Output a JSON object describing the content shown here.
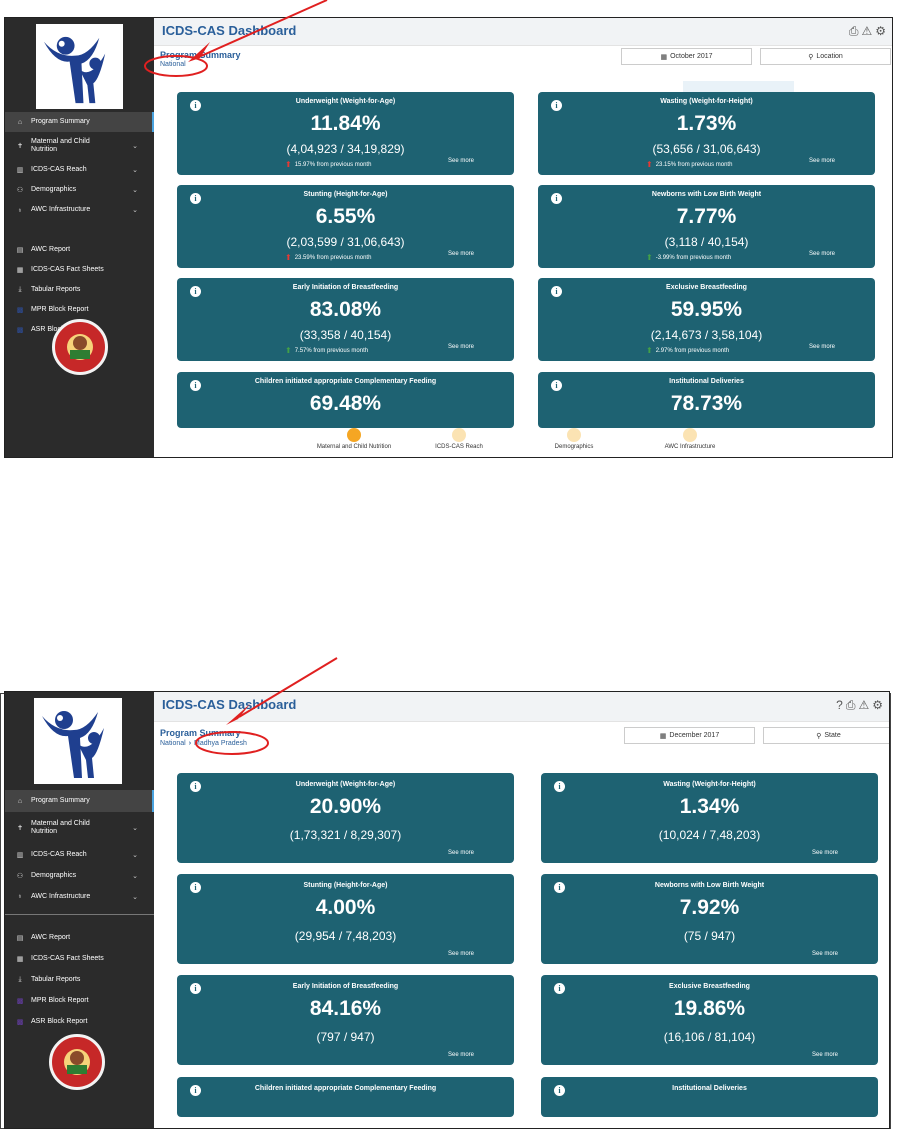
{
  "colors": {
    "card": "#1e6272",
    "sidebar": "#2b2b2b",
    "title": "#2a5f9a",
    "annotation": "#e02020",
    "trend_up": "#e53935",
    "trend_down": "#43a047",
    "step_active": "#f5a623",
    "step_inactive": "#fbe3b3"
  },
  "top": {
    "app_title": "ICDS-CAS Dashboard",
    "program_summary": "Program Summary",
    "breadcrumb": [
      "National"
    ],
    "date_button": "October 2017",
    "location_button": "Location",
    "sidebar": [
      {
        "label": "Program Summary",
        "icon": "home-icon",
        "chevron": false
      },
      {
        "label": "Maternal and Child Nutrition",
        "icon": "child-icon",
        "chevron": true
      },
      {
        "label": "ICDS-CAS Reach",
        "icon": "bar-chart-icon",
        "chevron": true
      },
      {
        "label": "Demographics",
        "icon": "users-icon",
        "chevron": true
      },
      {
        "label": "AWC Infrastructure",
        "icon": "bulb-icon",
        "chevron": true
      },
      {
        "label": "AWC Report",
        "icon": "report-icon",
        "chevron": false
      },
      {
        "label": "ICDS-CAS Fact Sheets",
        "icon": "document-icon",
        "chevron": false
      },
      {
        "label": "Tabular Reports",
        "icon": "download-icon",
        "chevron": false
      },
      {
        "label": "MPR Block Report",
        "icon": "grid-icon",
        "chevron": false
      },
      {
        "label": "ASR Block Report",
        "icon": "grid-icon",
        "chevron": false
      }
    ],
    "cards": [
      {
        "title": "Underweight (Weight-for-Age)",
        "value": "11.84%",
        "fraction": "(4,04,923 / 34,19,829)",
        "trend": "15.97% from previous month",
        "trend_dir": "up",
        "see_more": "See more"
      },
      {
        "title": "Wasting (Weight-for-Height)",
        "value": "1.73%",
        "fraction": "(53,656 / 31,06,643)",
        "trend": "23.15% from previous month",
        "trend_dir": "up",
        "see_more": "See more"
      },
      {
        "title": "Stunting (Height-for-Age)",
        "value": "6.55%",
        "fraction": "(2,03,599 / 31,06,643)",
        "trend": "23.59% from previous month",
        "trend_dir": "up",
        "see_more": "See more"
      },
      {
        "title": "Newborns with Low Birth Weight",
        "value": "7.77%",
        "fraction": "(3,118 / 40,154)",
        "trend": "-3.99% from previous month",
        "trend_dir": "down",
        "see_more": "See more"
      },
      {
        "title": "Early Initiation of Breastfeeding",
        "value": "83.08%",
        "fraction": "(33,358 / 40,154)",
        "trend": "7.57% from previous month",
        "trend_dir": "down",
        "see_more": "See more"
      },
      {
        "title": "Exclusive Breastfeeding",
        "value": "59.95%",
        "fraction": "(2,14,673 / 3,58,104)",
        "trend": "2.97% from previous month",
        "trend_dir": "down",
        "see_more": "See more"
      },
      {
        "title": "Children initiated appropriate Complementary Feeding",
        "value": "69.48%",
        "fraction": "",
        "trend": "",
        "trend_dir": "",
        "see_more": ""
      },
      {
        "title": "Institutional Deliveries",
        "value": "78.73%",
        "fraction": "",
        "trend": "",
        "trend_dir": "",
        "see_more": ""
      }
    ],
    "steps": [
      {
        "label": "Maternal and Child Nutrition",
        "active": true
      },
      {
        "label": "ICDS-CAS Reach",
        "active": false
      },
      {
        "label": "Demographics",
        "active": false
      },
      {
        "label": "AWC Infrastructure",
        "active": false
      }
    ]
  },
  "bottom": {
    "app_title": "ICDS-CAS Dashboard",
    "program_summary": "Program Summary",
    "breadcrumb": [
      "National",
      "Madhya Pradesh"
    ],
    "date_button": "December 2017",
    "location_button": "State",
    "sidebar": [
      {
        "label": "Program Summary",
        "icon": "home-icon",
        "chevron": false
      },
      {
        "label": "Maternal and Child Nutrition",
        "icon": "child-icon",
        "chevron": true
      },
      {
        "label": "ICDS-CAS Reach",
        "icon": "bar-chart-icon",
        "chevron": true
      },
      {
        "label": "Demographics",
        "icon": "users-icon",
        "chevron": true
      },
      {
        "label": "AWC Infrastructure",
        "icon": "bulb-icon",
        "chevron": true
      },
      {
        "label": "AWC Report",
        "icon": "report-icon",
        "chevron": false
      },
      {
        "label": "ICDS-CAS Fact Sheets",
        "icon": "document-icon",
        "chevron": false
      },
      {
        "label": "Tabular Reports",
        "icon": "download-icon",
        "chevron": false
      },
      {
        "label": "MPR Block Report",
        "icon": "grid-icon",
        "chevron": false
      },
      {
        "label": "ASR Block Report",
        "icon": "grid-icon",
        "chevron": false
      }
    ],
    "cards": [
      {
        "title": "Underweight (Weight-for-Age)",
        "value": "20.90%",
        "fraction": "(1,73,321 / 8,29,307)",
        "see_more": "See more"
      },
      {
        "title": "Wasting (Weight-for-Height)",
        "value": "1.34%",
        "fraction": "(10,024 / 7,48,203)",
        "see_more": "See more"
      },
      {
        "title": "Stunting (Height-for-Age)",
        "value": "4.00%",
        "fraction": "(29,954 / 7,48,203)",
        "see_more": "See more"
      },
      {
        "title": "Newborns with Low Birth Weight",
        "value": "7.92%",
        "fraction": "(75 / 947)",
        "see_more": "See more"
      },
      {
        "title": "Early Initiation of Breastfeeding",
        "value": "84.16%",
        "fraction": "(797 / 947)",
        "see_more": "See more"
      },
      {
        "title": "Exclusive Breastfeeding",
        "value": "19.86%",
        "fraction": "(16,106 / 81,104)",
        "see_more": "See more"
      },
      {
        "title": "Children initiated appropriate Complementary Feeding",
        "value": "",
        "fraction": "",
        "see_more": ""
      },
      {
        "title": "Institutional Deliveries",
        "value": "",
        "fraction": "",
        "see_more": ""
      }
    ]
  }
}
